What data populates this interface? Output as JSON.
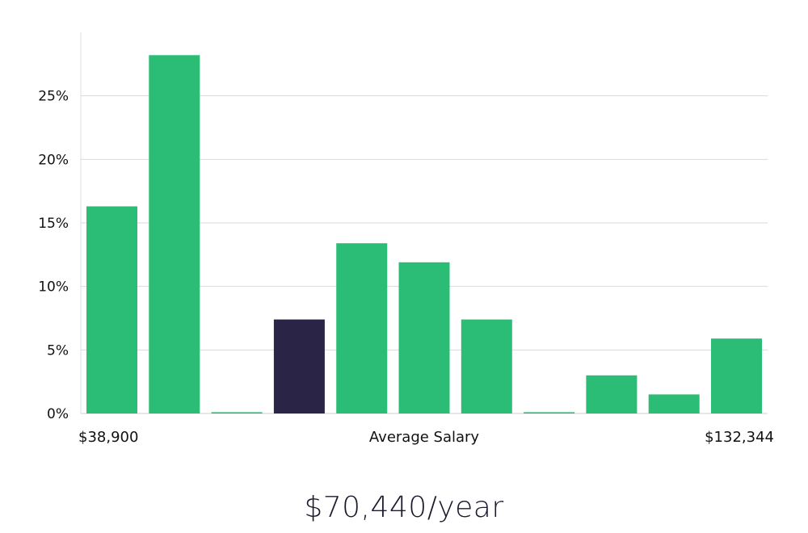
{
  "chart_data": {
    "type": "bar",
    "title": "",
    "xlabel": "Average Salary",
    "ylabel": "",
    "x_min_label": "$38,900",
    "x_max_label": "$132,344",
    "values": [
      16.3,
      28.2,
      0.1,
      7.4,
      13.4,
      11.9,
      7.4,
      0.1,
      3.0,
      1.5,
      5.9
    ],
    "highlight_index": 3,
    "ylim": [
      0,
      30
    ],
    "yticks": [
      0,
      5,
      10,
      15,
      20,
      25
    ],
    "ytick_labels": [
      "0%",
      "5%",
      "10%",
      "15%",
      "20%",
      "25%"
    ],
    "grid": true,
    "colors": {
      "bar": "#2bbd76",
      "highlight": "#2a2546",
      "grid": "#d9d9d9"
    }
  },
  "headline": "$70,440/year"
}
